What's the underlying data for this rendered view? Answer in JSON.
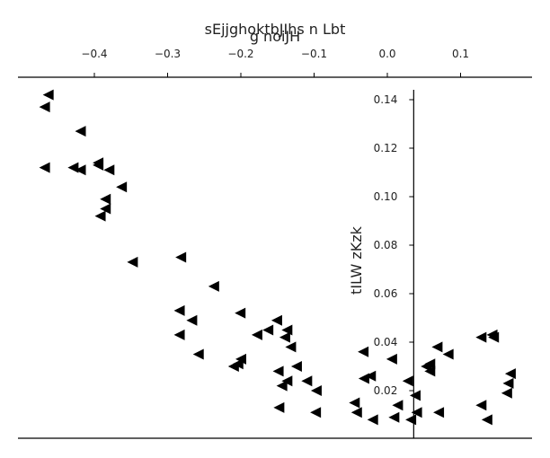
{
  "chart_data": {
    "type": "scatter",
    "title": "",
    "xlabel": "sEjjghoktbJIhs n  Lbt",
    "xlabel_second_line": "g noiJH",
    "ylabel": "tILW zKzk",
    "xlim": [
      -0.5,
      0.2
    ],
    "ylim": [
      0.0,
      0.15
    ],
    "x_ticks": [
      -0.4,
      -0.3,
      -0.2,
      -0.1,
      0.0,
      0.1
    ],
    "x_tick_labels": [
      "−0.4",
      "−0.3",
      "−0.2",
      "−0.1",
      "0.0",
      "0.1"
    ],
    "y_ticks": [
      0.02,
      0.04,
      0.06,
      0.08,
      0.1,
      0.12,
      0.14
    ],
    "y_tick_labels": [
      "0.02",
      "0.04",
      "0.06",
      "0.08",
      "0.10",
      "0.12",
      "0.14"
    ],
    "x_axis_position": "top",
    "y_axis_crosses_x": 0.036,
    "marker": "left-triangle",
    "marker_color": "#000000",
    "grid": false,
    "legend": "none",
    "points": [
      {
        "x": -0.463,
        "y": 0.142
      },
      {
        "x": -0.468,
        "y": 0.137
      },
      {
        "x": -0.419,
        "y": 0.127
      },
      {
        "x": -0.468,
        "y": 0.112
      },
      {
        "x": -0.429,
        "y": 0.112
      },
      {
        "x": -0.419,
        "y": 0.111
      },
      {
        "x": -0.395,
        "y": 0.114
      },
      {
        "x": -0.395,
        "y": 0.113
      },
      {
        "x": -0.38,
        "y": 0.111
      },
      {
        "x": -0.363,
        "y": 0.104
      },
      {
        "x": -0.385,
        "y": 0.099
      },
      {
        "x": -0.385,
        "y": 0.095
      },
      {
        "x": -0.392,
        "y": 0.092
      },
      {
        "x": -0.348,
        "y": 0.073
      },
      {
        "x": -0.282,
        "y": 0.075
      },
      {
        "x": -0.237,
        "y": 0.063
      },
      {
        "x": -0.284,
        "y": 0.053
      },
      {
        "x": -0.267,
        "y": 0.049
      },
      {
        "x": -0.201,
        "y": 0.052
      },
      {
        "x": -0.284,
        "y": 0.043
      },
      {
        "x": -0.258,
        "y": 0.035
      },
      {
        "x": -0.151,
        "y": 0.049
      },
      {
        "x": -0.163,
        "y": 0.045
      },
      {
        "x": -0.178,
        "y": 0.043
      },
      {
        "x": -0.137,
        "y": 0.045
      },
      {
        "x": -0.14,
        "y": 0.042
      },
      {
        "x": -0.132,
        "y": 0.038
      },
      {
        "x": -0.2,
        "y": 0.033
      },
      {
        "x": -0.204,
        "y": 0.031
      },
      {
        "x": -0.21,
        "y": 0.03
      },
      {
        "x": -0.149,
        "y": 0.028
      },
      {
        "x": -0.124,
        "y": 0.03
      },
      {
        "x": -0.137,
        "y": 0.024
      },
      {
        "x": -0.144,
        "y": 0.022
      },
      {
        "x": -0.11,
        "y": 0.024
      },
      {
        "x": -0.097,
        "y": 0.02
      },
      {
        "x": -0.148,
        "y": 0.013
      },
      {
        "x": -0.098,
        "y": 0.011
      },
      {
        "x": -0.033,
        "y": 0.036
      },
      {
        "x": -0.023,
        "y": 0.026
      },
      {
        "x": -0.032,
        "y": 0.025
      },
      {
        "x": -0.045,
        "y": 0.015
      },
      {
        "x": -0.042,
        "y": 0.011
      },
      {
        "x": -0.02,
        "y": 0.008
      },
      {
        "x": 0.006,
        "y": 0.033
      },
      {
        "x": 0.028,
        "y": 0.024
      },
      {
        "x": 0.038,
        "y": 0.018
      },
      {
        "x": 0.014,
        "y": 0.014
      },
      {
        "x": 0.009,
        "y": 0.009
      },
      {
        "x": 0.032,
        "y": 0.008
      },
      {
        "x": 0.04,
        "y": 0.011
      },
      {
        "x": 0.053,
        "y": 0.03
      },
      {
        "x": 0.058,
        "y": 0.031
      },
      {
        "x": 0.058,
        "y": 0.028
      },
      {
        "x": 0.068,
        "y": 0.038
      },
      {
        "x": 0.083,
        "y": 0.035
      },
      {
        "x": 0.07,
        "y": 0.011
      },
      {
        "x": 0.128,
        "y": 0.042
      },
      {
        "x": 0.143,
        "y": 0.043
      },
      {
        "x": 0.145,
        "y": 0.042
      },
      {
        "x": 0.168,
        "y": 0.027
      },
      {
        "x": 0.165,
        "y": 0.023
      },
      {
        "x": 0.163,
        "y": 0.019
      },
      {
        "x": 0.128,
        "y": 0.014
      },
      {
        "x": 0.136,
        "y": 0.008
      }
    ]
  }
}
